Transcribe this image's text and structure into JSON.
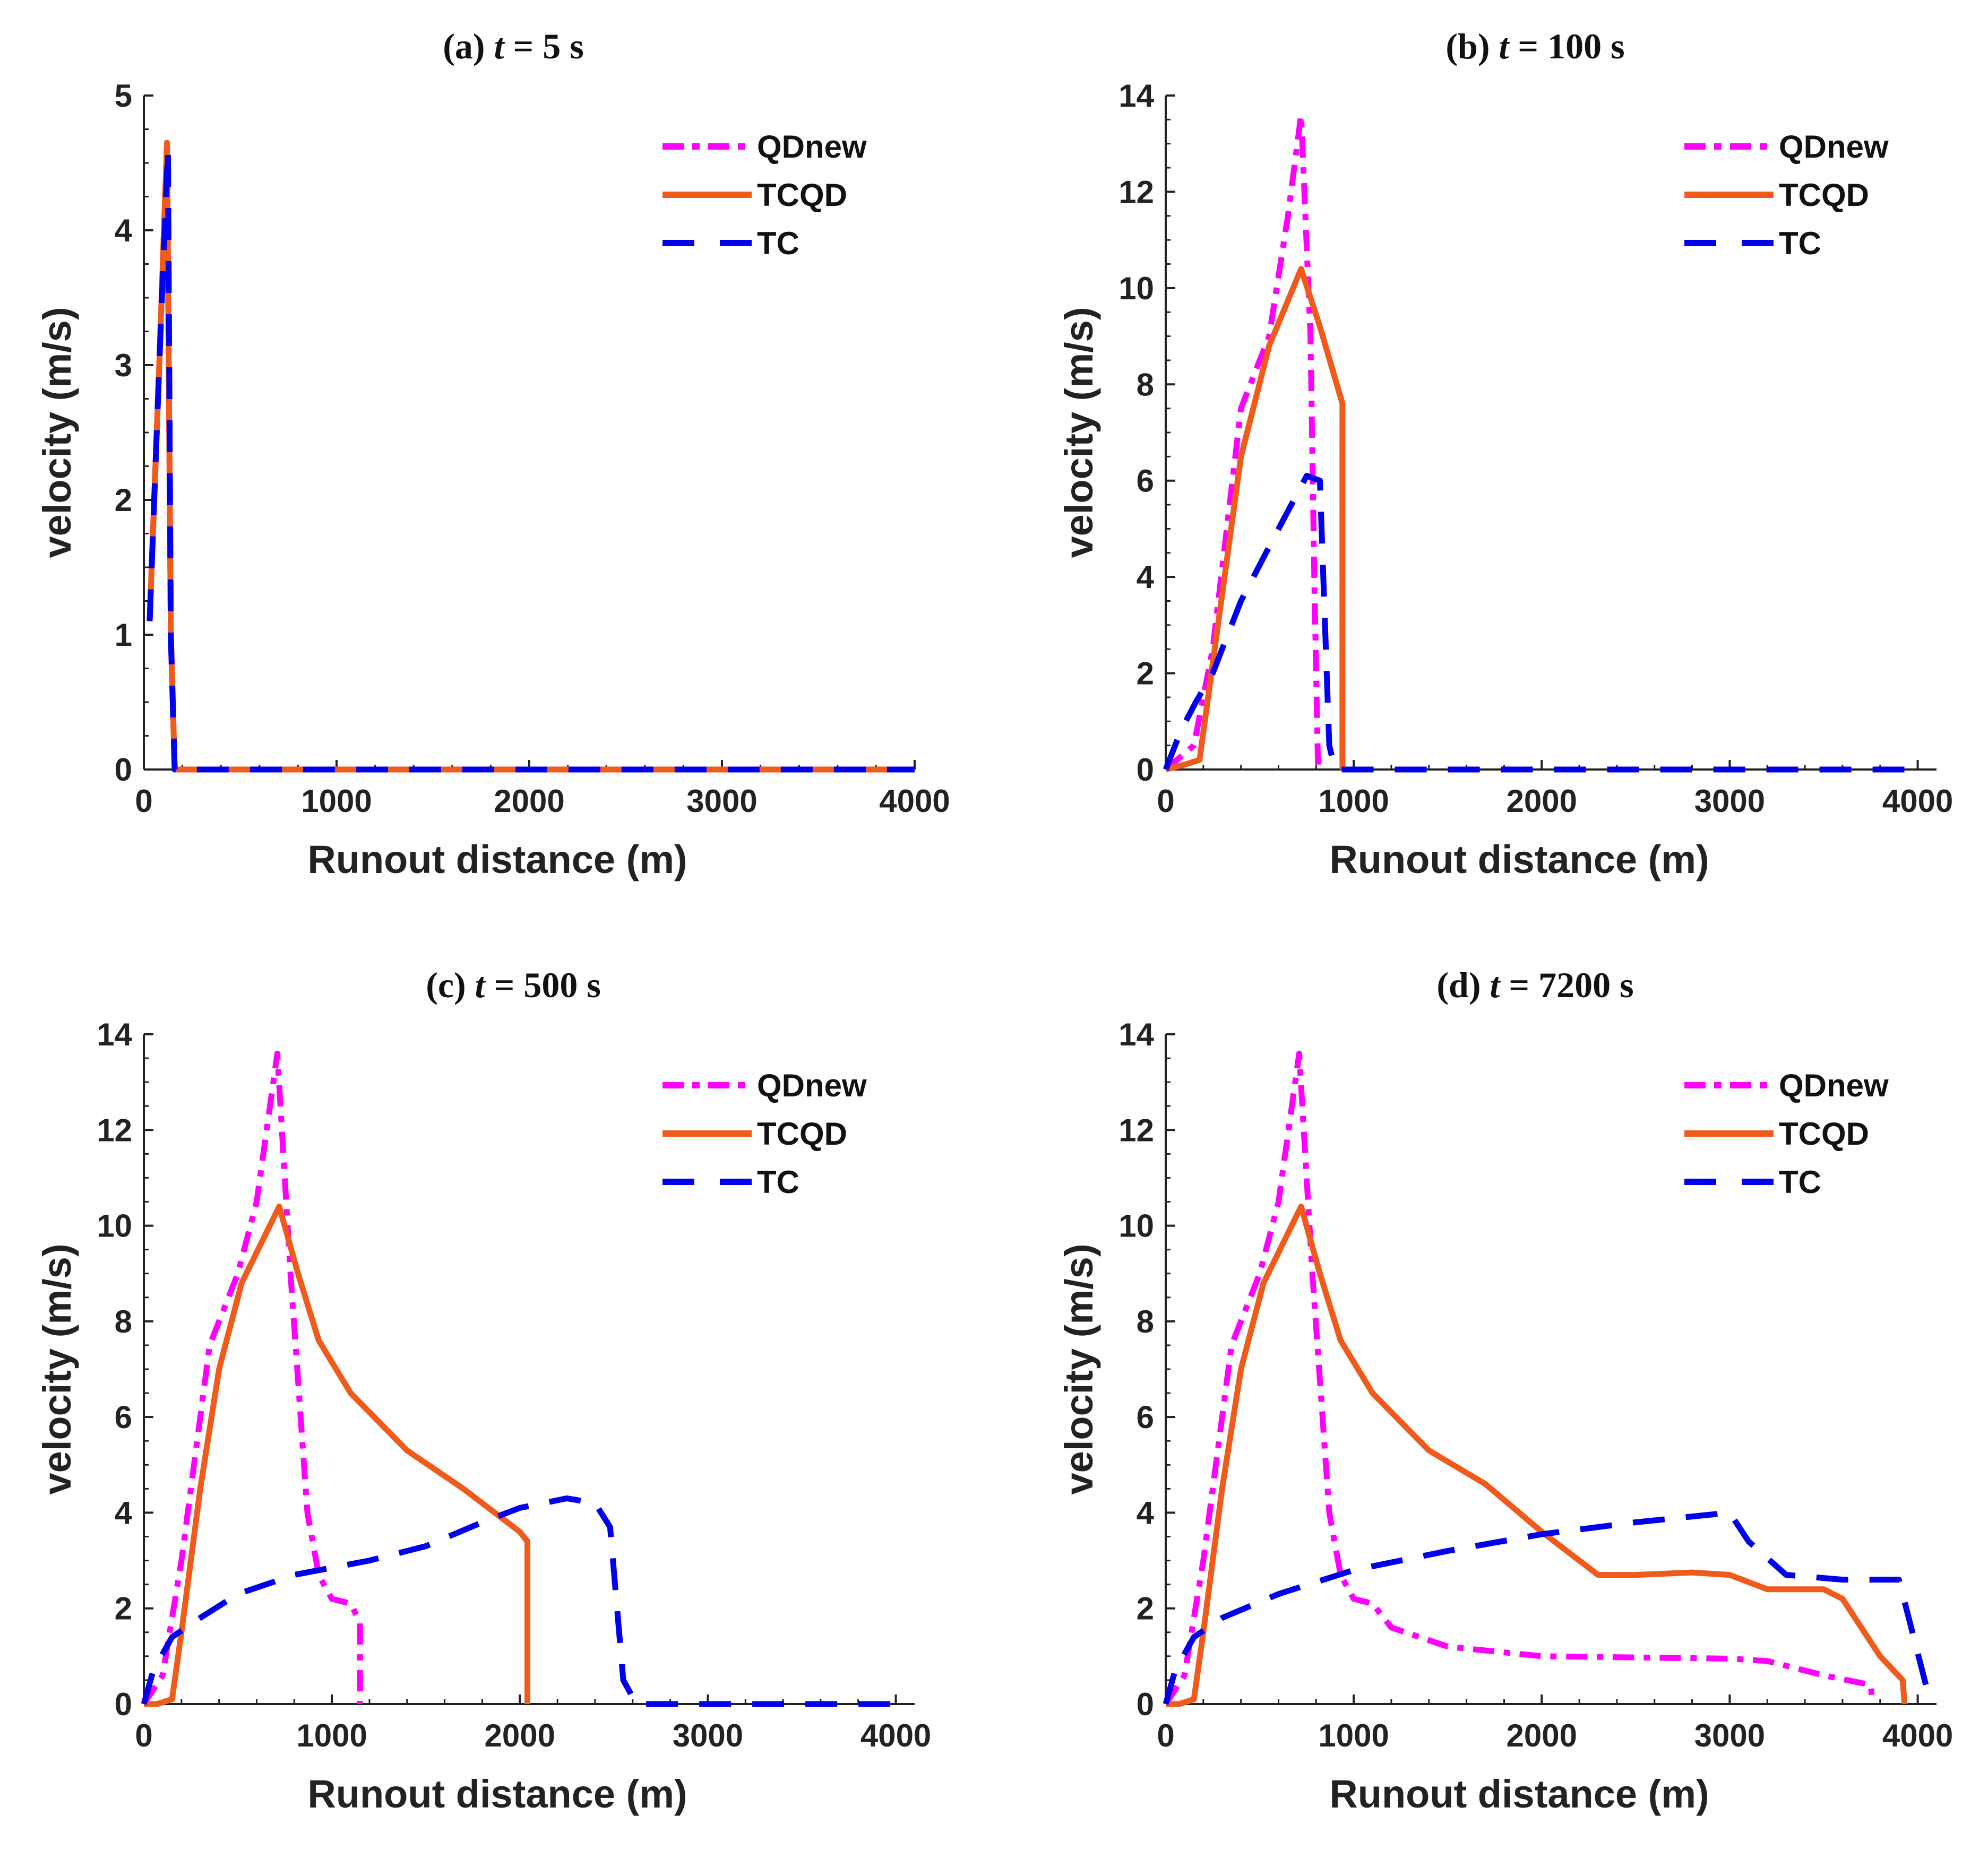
{
  "chart_data": [
    {
      "type": "line",
      "title_prefix": "(a) ",
      "title_var": "t",
      "title_suffix": " = 5 s",
      "xlabel": "Runout distance (m)",
      "ylabel": "velocity (m/s)",
      "xlim": [
        0,
        4000
      ],
      "ylim": [
        0,
        5
      ],
      "xticks": [
        0,
        1000,
        2000,
        3000,
        4000
      ],
      "yticks": [
        0,
        1,
        2,
        3,
        4,
        5
      ],
      "legend_position": "top-right",
      "series": [
        {
          "name": "QDnew",
          "color": "#ff00ff",
          "style": "dashdot",
          "x": [
            30,
            80,
            120,
            140,
            160,
            4000
          ],
          "y": [
            1.1,
            3.0,
            4.65,
            1.0,
            0,
            0
          ]
        },
        {
          "name": "TCQD",
          "color": "#f05a1a",
          "style": "solid",
          "x": [
            30,
            80,
            120,
            140,
            160,
            4000
          ],
          "y": [
            1.1,
            3.0,
            4.65,
            1.0,
            0,
            0
          ]
        },
        {
          "name": "TC",
          "color": "#0000ee",
          "style": "dash",
          "x": [
            30,
            80,
            125,
            140,
            160,
            4000
          ],
          "y": [
            1.1,
            3.0,
            4.6,
            1.0,
            0,
            0
          ]
        }
      ]
    },
    {
      "type": "line",
      "title_prefix": "(b)  ",
      "title_var": "t",
      "title_suffix": " = 100 s",
      "xlabel": "Runout distance (m)",
      "ylabel": "velocity (m/s)",
      "xlim": [
        0,
        4100
      ],
      "ylim": [
        0,
        14
      ],
      "xticks": [
        0,
        1000,
        2000,
        3000,
        4000
      ],
      "yticks": [
        0,
        2,
        4,
        6,
        8,
        10,
        12,
        14
      ],
      "legend_position": "top-right",
      "series": [
        {
          "name": "QDnew",
          "color": "#ff00ff",
          "style": "dashdot",
          "x": [
            0,
            150,
            250,
            400,
            550,
            650,
            720,
            770,
            790,
            810
          ],
          "y": [
            0,
            0.5,
            2.5,
            7.5,
            9.0,
            11.5,
            13.6,
            9.0,
            4.0,
            0
          ]
        },
        {
          "name": "TCQD",
          "color": "#f05a1a",
          "style": "solid",
          "x": [
            0,
            100,
            180,
            250,
            400,
            550,
            720,
            820,
            940,
            940
          ],
          "y": [
            0,
            0.1,
            0.2,
            2.2,
            6.5,
            8.8,
            10.4,
            9.2,
            7.6,
            0
          ]
        },
        {
          "name": "TC",
          "color": "#0000ee",
          "style": "dash",
          "x": [
            0,
            80,
            160,
            250,
            400,
            600,
            750,
            820,
            870,
            900,
            4000
          ],
          "y": [
            0,
            0.8,
            1.4,
            2.0,
            3.5,
            5.0,
            6.1,
            6.0,
            0.5,
            0,
            0
          ]
        }
      ]
    },
    {
      "type": "line",
      "title_prefix": "(c)  ",
      "title_var": "t",
      "title_suffix": " = 500 s",
      "xlabel": "Runout distance (m)",
      "ylabel": "velocity (m/s)",
      "xlim": [
        0,
        4100
      ],
      "ylim": [
        0,
        14
      ],
      "xticks": [
        0,
        1000,
        2000,
        3000,
        4000
      ],
      "yticks": [
        0,
        2,
        4,
        6,
        8,
        10,
        12,
        14
      ],
      "legend_position": "top-right",
      "series": [
        {
          "name": "QDnew",
          "color": "#ff00ff",
          "style": "dashdot",
          "x": [
            0,
            100,
            200,
            350,
            500,
            600,
            710,
            780,
            870,
            930,
            1000,
            1100,
            1150,
            1150
          ],
          "y": [
            0,
            0.6,
            3.0,
            7.5,
            9.0,
            10.5,
            13.6,
            9.0,
            4.0,
            2.7,
            2.2,
            2.1,
            1.7,
            0
          ]
        },
        {
          "name": "TCQD",
          "color": "#f05a1a",
          "style": "solid",
          "x": [
            0,
            70,
            150,
            200,
            300,
            400,
            520,
            720,
            820,
            930,
            1100,
            1400,
            1700,
            2000,
            2040,
            2040
          ],
          "y": [
            0,
            0,
            0.1,
            1.5,
            4.5,
            7.0,
            8.8,
            10.4,
            9.0,
            7.6,
            6.5,
            5.3,
            4.5,
            3.6,
            3.4,
            0
          ]
        },
        {
          "name": "TC",
          "color": "#0000ee",
          "style": "dash",
          "x": [
            0,
            50,
            150,
            300,
            500,
            800,
            1200,
            1500,
            1800,
            2000,
            2250,
            2400,
            2480,
            2550,
            2620,
            4000
          ],
          "y": [
            0,
            0.7,
            1.4,
            1.8,
            2.3,
            2.7,
            3.0,
            3.3,
            3.8,
            4.1,
            4.3,
            4.2,
            3.7,
            0.5,
            0,
            0
          ]
        }
      ]
    },
    {
      "type": "line",
      "title_prefix": "(d)  ",
      "title_var": "t",
      "title_suffix": " = 7200 s",
      "xlabel": "Runout distance (m)",
      "ylabel": "velocity (m/s)",
      "xlim": [
        0,
        4100
      ],
      "ylim": [
        0,
        14
      ],
      "xticks": [
        0,
        1000,
        2000,
        3000,
        4000
      ],
      "yticks": [
        0,
        2,
        4,
        6,
        8,
        10,
        12,
        14
      ],
      "legend_position": "top-right",
      "series": [
        {
          "name": "QDnew",
          "color": "#ff00ff",
          "style": "dashdot",
          "x": [
            0,
            100,
            200,
            350,
            500,
            600,
            710,
            780,
            870,
            930,
            1000,
            1100,
            1200,
            1500,
            2000,
            3000,
            3200,
            3500,
            3750,
            3760
          ],
          "y": [
            0,
            0.6,
            3.0,
            7.5,
            9.0,
            10.5,
            13.6,
            9.0,
            4.0,
            2.7,
            2.2,
            2.1,
            1.6,
            1.2,
            1.0,
            0.95,
            0.9,
            0.6,
            0.4,
            0
          ]
        },
        {
          "name": "TCQD",
          "color": "#f05a1a",
          "style": "solid",
          "x": [
            0,
            70,
            150,
            200,
            300,
            400,
            520,
            720,
            820,
            930,
            1100,
            1400,
            1700,
            2000,
            2300,
            2500,
            2800,
            3000,
            3200,
            3500,
            3600,
            3800,
            3920,
            3930
          ],
          "y": [
            0,
            0,
            0.1,
            1.5,
            4.5,
            7.0,
            8.8,
            10.4,
            9.0,
            7.6,
            6.5,
            5.3,
            4.6,
            3.6,
            2.7,
            2.7,
            2.75,
            2.7,
            2.4,
            2.4,
            2.2,
            1.0,
            0.5,
            0
          ]
        },
        {
          "name": "TC",
          "color": "#0000ee",
          "style": "dash",
          "x": [
            0,
            50,
            150,
            300,
            600,
            1000,
            1500,
            2000,
            2500,
            3000,
            3100,
            3300,
            3600,
            3900,
            4050
          ],
          "y": [
            0,
            0.7,
            1.4,
            1.8,
            2.3,
            2.8,
            3.2,
            3.55,
            3.8,
            4.0,
            3.4,
            2.7,
            2.6,
            2.6,
            0.3
          ]
        }
      ]
    }
  ]
}
